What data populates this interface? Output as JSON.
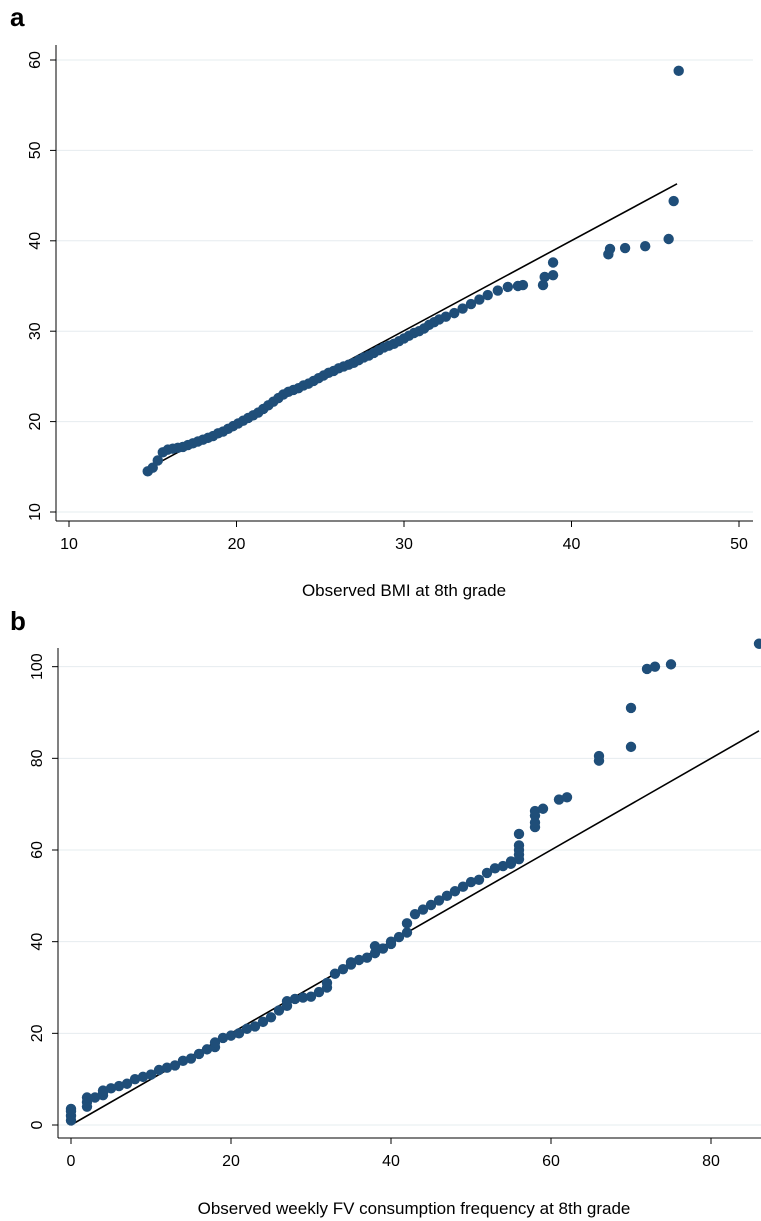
{
  "chart_data": [
    {
      "type": "scatter",
      "panel_label": "a",
      "title": "",
      "xlabel": "Observed BMI at 8th grade",
      "ylabel": "",
      "xlim": [
        10,
        50
      ],
      "ylim": [
        10,
        60
      ],
      "xticks": [
        10,
        20,
        30,
        40,
        50
      ],
      "yticks": [
        10,
        20,
        30,
        40,
        50,
        60
      ],
      "grid": "horizontal",
      "marker_color": "#1f4e79",
      "line_color": "#000000",
      "reference_line": {
        "x": [
          14.8,
          46.3
        ],
        "y": [
          14.9,
          46.3
        ]
      },
      "points": {
        "x": [
          14.7,
          15.0,
          15.3,
          15.6,
          15.9,
          16.2,
          16.5,
          16.8,
          17.1,
          17.4,
          17.7,
          18.0,
          18.3,
          18.6,
          18.9,
          19.2,
          19.5,
          19.8,
          20.1,
          20.4,
          20.7,
          21.0,
          21.3,
          21.6,
          21.9,
          22.2,
          22.5,
          22.8,
          23.1,
          23.4,
          23.7,
          24.0,
          24.3,
          24.6,
          24.9,
          25.2,
          25.5,
          25.8,
          26.1,
          26.4,
          26.7,
          27.0,
          27.3,
          27.6,
          27.9,
          28.2,
          28.5,
          28.8,
          29.1,
          29.4,
          29.7,
          30.0,
          30.3,
          30.6,
          30.9,
          31.2,
          31.5,
          31.8,
          32.1,
          32.5,
          33.0,
          33.5,
          34.0,
          34.5,
          35.0,
          35.6,
          36.2,
          36.8,
          37.1,
          38.3,
          38.4,
          38.9,
          38.9,
          42.2,
          42.3,
          43.2,
          44.4,
          45.8,
          46.1,
          46.4
        ],
        "y": [
          14.5,
          14.9,
          15.7,
          16.6,
          16.9,
          17.0,
          17.1,
          17.2,
          17.4,
          17.6,
          17.8,
          18.0,
          18.2,
          18.4,
          18.7,
          18.9,
          19.2,
          19.5,
          19.8,
          20.1,
          20.4,
          20.7,
          21.0,
          21.4,
          21.8,
          22.2,
          22.6,
          23.0,
          23.3,
          23.5,
          23.7,
          24.0,
          24.2,
          24.5,
          24.8,
          25.1,
          25.4,
          25.6,
          25.9,
          26.1,
          26.3,
          26.5,
          26.8,
          27.1,
          27.3,
          27.6,
          27.9,
          28.2,
          28.4,
          28.6,
          28.9,
          29.2,
          29.5,
          29.8,
          30.0,
          30.3,
          30.7,
          31.0,
          31.3,
          31.6,
          32.0,
          32.5,
          33.0,
          33.5,
          34.0,
          34.5,
          34.9,
          35.0,
          35.1,
          35.1,
          36.0,
          36.2,
          37.6,
          38.5,
          39.1,
          39.2,
          39.4,
          40.2,
          44.4,
          58.8
        ]
      }
    },
    {
      "type": "scatter",
      "panel_label": "b",
      "title": "",
      "xlabel": "Observed weekly FV consumption frequency at 8th grade",
      "ylabel": "",
      "xlim": [
        0,
        86
      ],
      "ylim": [
        0,
        108
      ],
      "xticks": [
        0,
        20,
        40,
        60,
        80
      ],
      "yticks": [
        0,
        20,
        40,
        60,
        80,
        100
      ],
      "grid": "horizontal",
      "marker_color": "#1f4e79",
      "line_color": "#000000",
      "reference_line": {
        "x": [
          0,
          86
        ],
        "y": [
          0,
          86
        ]
      },
      "points": {
        "x": [
          0,
          0,
          0,
          0,
          2,
          2,
          2,
          3,
          4,
          4,
          4,
          5,
          6,
          7,
          8,
          9,
          10,
          11,
          12,
          13,
          14,
          15,
          16,
          17,
          18,
          18,
          19,
          20,
          21,
          22,
          23,
          24,
          25,
          26,
          27,
          27,
          28,
          29,
          30,
          31,
          32,
          32,
          33,
          34,
          35,
          35,
          36,
          37,
          38,
          38,
          39,
          40,
          40,
          41,
          42,
          42,
          43,
          44,
          45,
          46,
          47,
          48,
          49,
          50,
          51,
          52,
          53,
          54,
          55,
          55,
          56,
          56,
          56,
          56,
          56,
          58,
          58,
          58,
          58,
          59,
          61,
          62,
          66,
          66,
          70,
          70,
          72,
          73,
          75,
          86
        ],
        "y": [
          1,
          2,
          3,
          3.5,
          4,
          5,
          6,
          6,
          6.5,
          7,
          7.5,
          8,
          8.5,
          9,
          10,
          10.5,
          11,
          12,
          12.5,
          13,
          14,
          14.5,
          15.5,
          16.5,
          17,
          18,
          19,
          19.5,
          20,
          21,
          21.5,
          22.5,
          23.5,
          25,
          26,
          27,
          27.5,
          27.8,
          28,
          29,
          30,
          31,
          33,
          34,
          35,
          35.5,
          36,
          36.5,
          37.5,
          39,
          38.5,
          39.5,
          40,
          41,
          42,
          44,
          46,
          47,
          48,
          49,
          50,
          51,
          52,
          53,
          53.5,
          55,
          56,
          56.5,
          57,
          57.5,
          58,
          59,
          60,
          61,
          63.5,
          65,
          66,
          67.5,
          68.5,
          69,
          71,
          71.5,
          79.5,
          80.5,
          82.5,
          91,
          99.5,
          100,
          100.5,
          105
        ]
      }
    }
  ]
}
